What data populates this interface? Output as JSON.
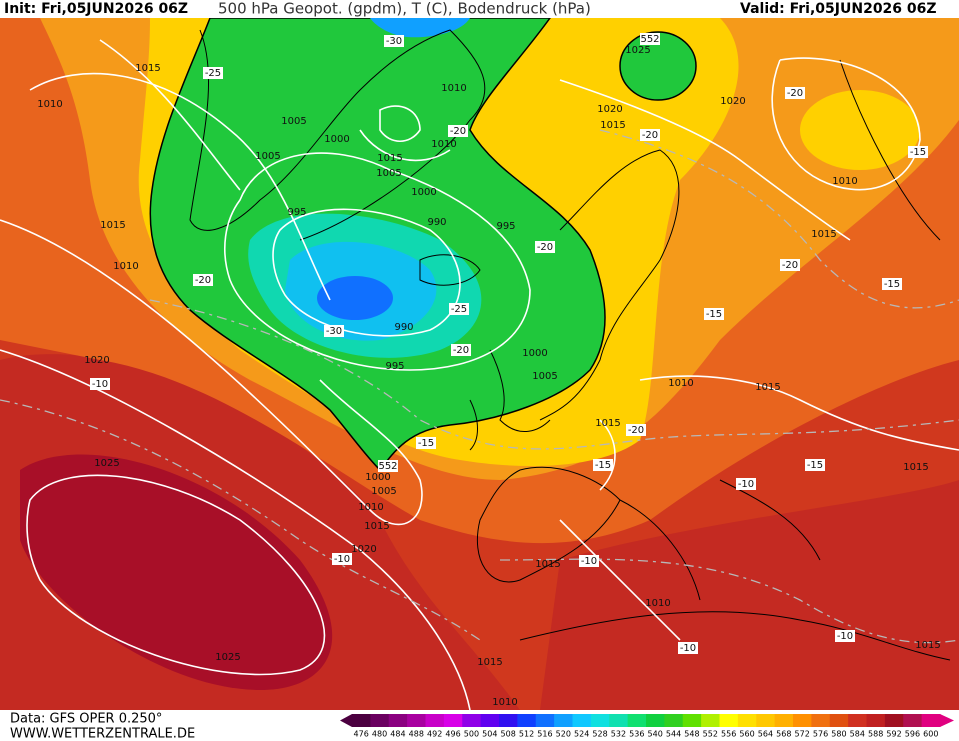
{
  "header": {
    "init": "Init: Fri,05JUN2026 06Z",
    "title": "500 hPa Geopot. (gpdm), T (C), Bodendruck (hPa)",
    "valid": "Valid: Fri,05JUN2026 06Z"
  },
  "footer": {
    "data_source": "Data: GFS OPER 0.250°",
    "website": "WWW.WETTERZENTRALE.DE"
  },
  "colorbar": {
    "values": [
      476,
      480,
      484,
      488,
      492,
      496,
      500,
      504,
      508,
      512,
      516,
      520,
      524,
      528,
      532,
      536,
      540,
      544,
      548,
      552,
      556,
      560,
      564,
      568,
      572,
      576,
      580,
      584,
      588,
      592,
      596,
      600
    ],
    "colors": [
      "#4b0040",
      "#6a0060",
      "#8a0080",
      "#a800a0",
      "#c800c8",
      "#d800e8",
      "#9000e8",
      "#6000f0",
      "#3010f0",
      "#1040ff",
      "#1070ff",
      "#10a0ff",
      "#10c8ff",
      "#10e0e0",
      "#10e0b0",
      "#10e070",
      "#10d040",
      "#30d020",
      "#60e000",
      "#b0f000",
      "#ffff00",
      "#ffe000",
      "#ffc800",
      "#ffb000",
      "#ff9000",
      "#f07010",
      "#e05010",
      "#d03020",
      "#c02020",
      "#a01020",
      "#b01050",
      "#e00080"
    ]
  },
  "map_labels": {
    "isobars": [
      "1015",
      "1010",
      "1005",
      "1005",
      "1000",
      "1015",
      "1005",
      "1010",
      "1010",
      "1000",
      "995",
      "990",
      "995",
      "1015",
      "1010",
      "990",
      "995",
      "1000",
      "1005",
      "1020",
      "1025",
      "1000",
      "1005",
      "1010",
      "1015",
      "1020",
      "1025",
      "1025",
      "1020",
      "1015",
      "1020",
      "1010",
      "1015",
      "1010",
      "1015",
      "1015",
      "1015",
      "1010",
      "1015",
      "1010",
      "1015",
      "1015"
    ],
    "temperatures": [
      "-30",
      "-25",
      "-20",
      "-20",
      "-20",
      "-15",
      "-20",
      "-20",
      "-20",
      "-15",
      "-15",
      "-25",
      "-30",
      "-20",
      "-10",
      "-15",
      "-20",
      "-15",
      "-15",
      "-10",
      "-10",
      "-10",
      "-10",
      "-10"
    ],
    "geopotential": [
      "552",
      "552"
    ]
  }
}
